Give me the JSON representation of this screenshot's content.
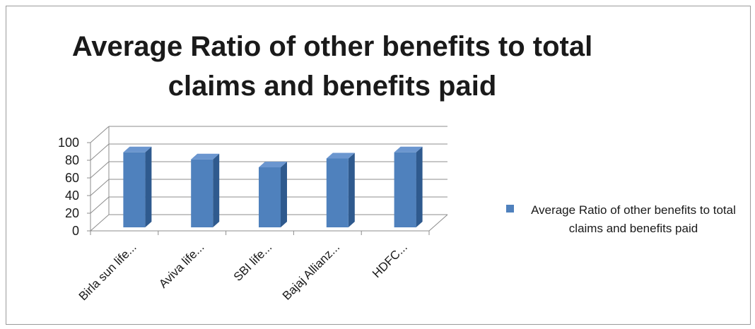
{
  "chart_data": {
    "type": "bar",
    "title": "Average Ratio of other benefits to total claims and benefits paid",
    "categories": [
      "Birla sun life...",
      "Aviva life...",
      "SBI life...",
      "Bajaj Allianz...",
      "HDFC..."
    ],
    "series": [
      {
        "name": "Average Ratio of other benefits to total claims and benefits paid",
        "values": [
          89,
          81,
          72,
          82,
          89
        ]
      }
    ],
    "ylim": [
      0,
      100
    ],
    "yticks": [
      "0",
      "20",
      "40",
      "60",
      "80",
      "100"
    ],
    "grid": true,
    "legend_position": "right",
    "colors": {
      "bar_front": "#4f81bd",
      "bar_side": "#2f5a8e",
      "bar_top": "#6b96cf",
      "grid": "#8c8c8c"
    }
  }
}
